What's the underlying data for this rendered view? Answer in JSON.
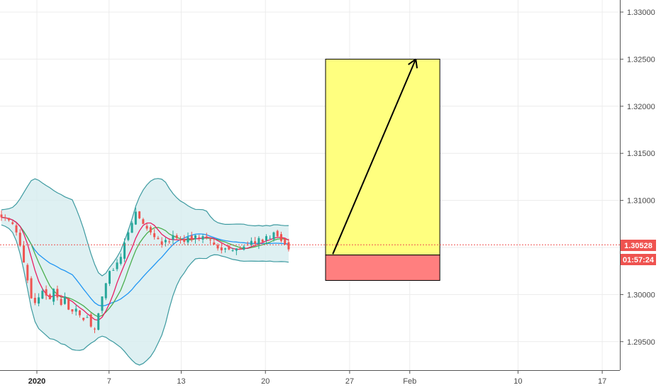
{
  "chart_data": {
    "type": "candlestick",
    "y_axis": {
      "range": [
        1.2915,
        1.3345
      ],
      "ticks": [
        "1.33000",
        "1.32500",
        "1.32000",
        "1.31500",
        "1.31000",
        "1.30500",
        "1.30000",
        "1.29500"
      ],
      "position": "right",
      "grid": true
    },
    "x_axis": {
      "ticks": [
        {
          "label": "2020",
          "bold": true,
          "day": 0
        },
        {
          "label": "7",
          "bold": false,
          "day": 6
        },
        {
          "label": "13",
          "bold": false,
          "day": 12
        },
        {
          "label": "20",
          "bold": false,
          "day": 19
        },
        {
          "label": "27",
          "bold": false,
          "day": 26
        },
        {
          "label": "Feb",
          "bold": false,
          "day": 31
        },
        {
          "label": "10",
          "bold": false,
          "day": 40
        },
        {
          "label": "17",
          "bold": false,
          "day": 47
        }
      ],
      "grid": true
    },
    "current_price": {
      "label": "1.30528",
      "value": 1.30528,
      "color": "#ef5350"
    },
    "countdown": "01:57:24",
    "colors": {
      "up": "#26a69a",
      "down": "#ef5350",
      "band_fill": "#d6ecef",
      "band_line": "#3d9aa0",
      "ma_fast": "#e91e63",
      "ma_mid": "#4caf50",
      "ma_slow": "#2196f3"
    },
    "candles_close": [
      1.3082,
      1.3081,
      1.3079,
      1.3075,
      1.3066,
      1.3052,
      1.3034,
      1.3015,
      1.2996,
      1.2991,
      1.2997,
      1.3004,
      1.2999,
      1.2995,
      1.3006,
      1.2997,
      1.2989,
      1.2998,
      1.2984,
      1.2982,
      1.2985,
      1.2978,
      1.2973,
      1.2976,
      1.2966,
      1.2963,
      1.298,
      1.2998,
      1.3012,
      1.3025,
      1.3026,
      1.3034,
      1.304,
      1.3055,
      1.3066,
      1.3076,
      1.3088,
      1.3081,
      1.3075,
      1.307,
      1.3066,
      1.3061,
      1.3059,
      1.3053,
      1.3058,
      1.3056,
      1.3063,
      1.306,
      1.3058,
      1.3056,
      1.3061,
      1.3058,
      1.3063,
      1.306,
      1.3062,
      1.3061,
      1.3058,
      1.3053,
      1.3049,
      1.3047,
      1.3049,
      1.3048,
      1.3047,
      1.3049,
      1.3048,
      1.3051,
      1.3053,
      1.3057,
      1.3054,
      1.306,
      1.3056,
      1.3062,
      1.306,
      1.3066,
      1.3062,
      1.3057,
      1.3053,
      1.3048
    ],
    "position": {
      "entry": 1.3042,
      "target": 1.325,
      "stop": 1.3015,
      "start_day": 24.0,
      "end_day": 33.5,
      "profit_color": "#ffff7f",
      "loss_color": "#ff7f7f"
    },
    "arrow": {
      "from": [
        24.6,
        1.3043
      ],
      "to": [
        31.5,
        1.325
      ]
    }
  }
}
